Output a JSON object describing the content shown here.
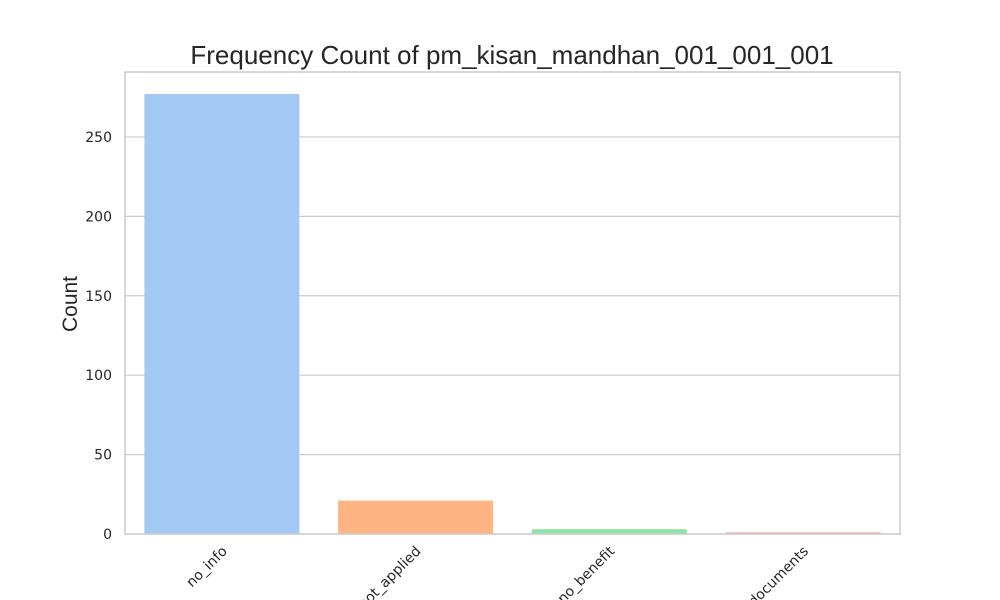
{
  "chart_data": {
    "type": "bar",
    "title": "Frequency Count of pm_kisan_mandhan_001_001_001",
    "xlabel": "",
    "ylabel": "Count",
    "categories": [
      "no_info",
      "not_applied",
      "no_benefit",
      "no_documents"
    ],
    "values": [
      277,
      21,
      3,
      1
    ],
    "ylim": [
      0,
      290.9
    ],
    "yticks": [
      0,
      50,
      100,
      150,
      200,
      250
    ],
    "grid": "y",
    "colors": [
      "#a1c9f4",
      "#ffb482",
      "#8de5a1",
      "#ff9f9b"
    ],
    "grid_color": "#cccccc",
    "frame_color": "#cccccc"
  }
}
